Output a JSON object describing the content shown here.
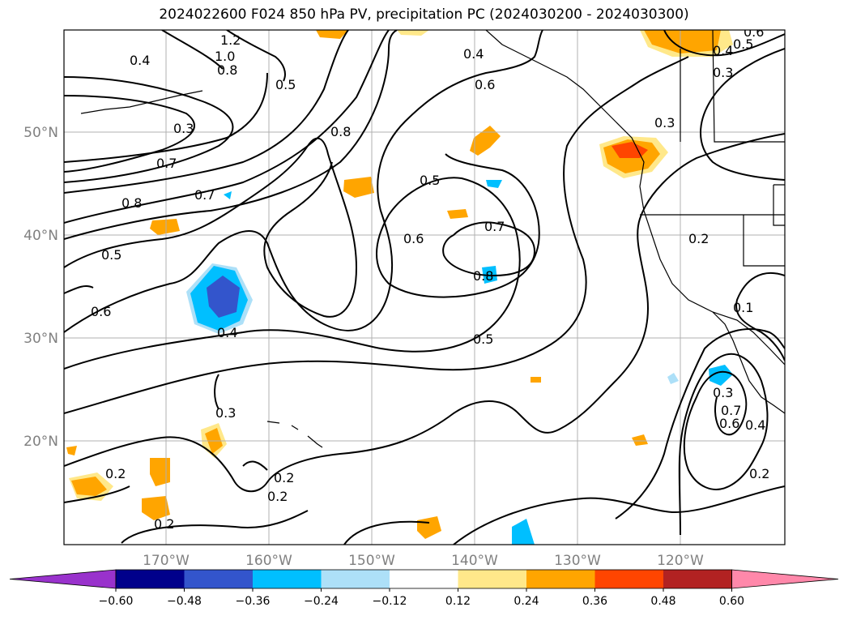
{
  "title": "2024022600 F024 850 hPa PV, precipitation PC (2024030200 - 2024030300)",
  "lat_labels": [
    "50°N",
    "40°N",
    "30°N",
    "20°N"
  ],
  "lon_labels": [
    "170°W",
    "160°W",
    "150°W",
    "140°W",
    "130°W",
    "120°W"
  ],
  "colorbar": {
    "colors": [
      "#9932CC",
      "#00008B",
      "#3355CC",
      "#00BFFF",
      "#ADE0F8",
      "#FFFFFF",
      "#FFE88A",
      "#FFA500",
      "#FF4500",
      "#B22222",
      "#FF88AA"
    ],
    "ticks": [
      "−0.60",
      "−0.48",
      "−0.36",
      "−0.24",
      "−0.12",
      "0.12",
      "0.24",
      "0.36",
      "0.48",
      "0.60"
    ]
  },
  "contour_labels": [
    "1.2",
    "1.0",
    "0.8",
    "0.4",
    "0.5",
    "0.3",
    "0.7",
    "0.7",
    "0.8",
    "0.5",
    "0.6",
    "0.4",
    "0.8",
    "0.6",
    "0.5",
    "0.6",
    "0.7",
    "0.8",
    "0.5",
    "0.4",
    "0.3",
    "0.2",
    "0.2",
    "0.2",
    "0.2",
    "0.2",
    "0.3",
    "0.3",
    "0.4",
    "0.5",
    "0.6",
    "0.3",
    "0.7",
    "0.6",
    "0.4",
    "0.2",
    "0.1"
  ]
}
